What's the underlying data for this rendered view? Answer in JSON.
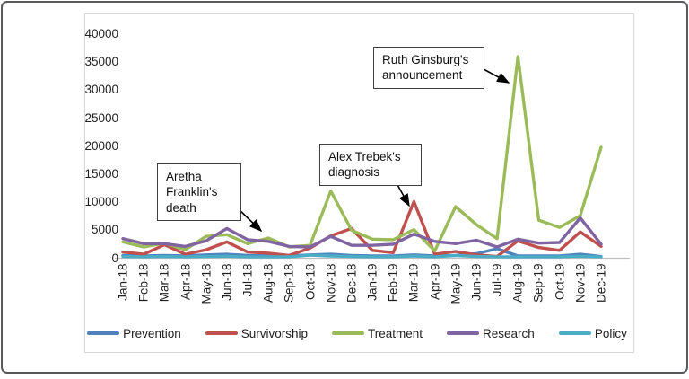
{
  "chart_data": {
    "type": "line",
    "title": "",
    "xlabel": "",
    "ylabel": "",
    "ylim": [
      0,
      40000
    ],
    "ytick_step": 5000,
    "yticks": [
      0,
      5000,
      10000,
      15000,
      20000,
      25000,
      30000,
      35000,
      40000
    ],
    "grid": "off",
    "legend_position": "bottom",
    "categories": [
      "Jan-18",
      "Feb-18",
      "Mar-18",
      "Apr-18",
      "May-18",
      "Jun-18",
      "Jul-18",
      "Aug-18",
      "Sep-18",
      "Oct-18",
      "Nov-18",
      "Dec-18",
      "Jan-19",
      "Feb-19",
      "Mar-19",
      "Apr-19",
      "May-19",
      "Jun-19",
      "Jul-19",
      "Aug-19",
      "Sep-19",
      "Oct-19",
      "Nov-19",
      "Dec-19"
    ],
    "series": [
      {
        "name": "Prevention",
        "color": "#4F81BD",
        "values": [
          500,
          400,
          500,
          400,
          600,
          700,
          500,
          400,
          400,
          600,
          700,
          500,
          400,
          400,
          600,
          400,
          500,
          800,
          1700,
          400,
          400,
          400,
          700,
          300
        ]
      },
      {
        "name": "Survivorship",
        "color": "#C0504D",
        "values": [
          1100,
          700,
          2400,
          700,
          1500,
          2900,
          1100,
          900,
          500,
          1800,
          4000,
          5300,
          1400,
          1000,
          10100,
          700,
          1200,
          600,
          300,
          3100,
          1900,
          1400,
          4700,
          2100
        ]
      },
      {
        "name": "Treatment",
        "color": "#9BBB59",
        "values": [
          2900,
          2000,
          2700,
          1500,
          3900,
          4200,
          2600,
          3600,
          2000,
          2300,
          12000,
          5000,
          3400,
          3300,
          5100,
          1300,
          9200,
          6000,
          3500,
          36000,
          6800,
          5500,
          7600,
          19800
        ]
      },
      {
        "name": "Research",
        "color": "#8064A2",
        "values": [
          3500,
          2600,
          2600,
          2100,
          3100,
          5300,
          3300,
          3000,
          2100,
          2000,
          3900,
          2300,
          2300,
          2500,
          4300,
          3000,
          2600,
          3200,
          2000,
          3400,
          2700,
          2800,
          7200,
          2500
        ]
      },
      {
        "name": "Policy",
        "color": "#4BACC6",
        "values": [
          300,
          250,
          300,
          250,
          300,
          350,
          250,
          250,
          250,
          550,
          400,
          300,
          250,
          250,
          400,
          250,
          500,
          300,
          250,
          250,
          250,
          250,
          350,
          250
        ]
      }
    ],
    "annotations": [
      {
        "text": "Aretha\nFranklin's\ndeath",
        "points_to": "Treatment peak Aug-18"
      },
      {
        "text": "Alex Trebek's\ndiagnosis",
        "points_to": "Survivorship peak Mar-19"
      },
      {
        "text": "Ruth Ginsburg's\nannouncement",
        "points_to": "Treatment peak Aug-19"
      }
    ]
  }
}
